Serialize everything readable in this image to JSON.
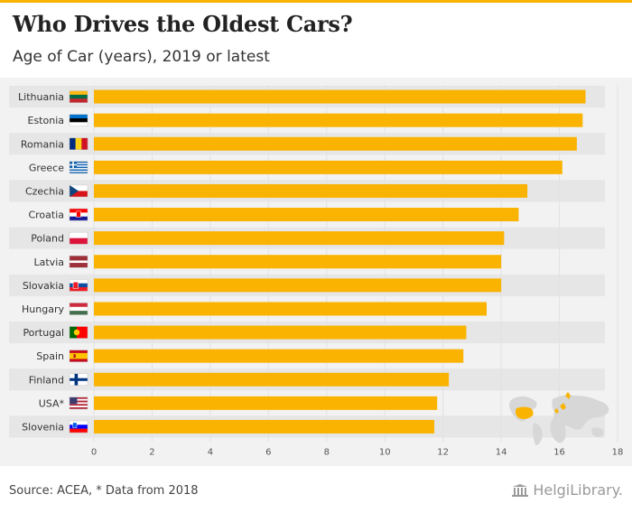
{
  "header": {
    "title": "Who Drives the Oldest Cars?",
    "subtitle": "Age of Car (years), 2019 or latest"
  },
  "footer": {
    "source": "Source: ACEA, * Data from 2018",
    "logo_text": "HelgiLibrary."
  },
  "colors": {
    "bar": "#f9b300",
    "background": "#f2f2f2",
    "row_band": "#e6e6e6"
  },
  "chart_data": {
    "type": "bar",
    "orientation": "horizontal",
    "title": "Who Drives the Oldest Cars?",
    "subtitle": "Age of Car (years), 2019 or latest",
    "xlabel": "",
    "ylabel": "",
    "xlim": [
      0,
      18
    ],
    "xticks": [
      0,
      2,
      4,
      6,
      8,
      10,
      12,
      14,
      16,
      18
    ],
    "grid": true,
    "legend": "none",
    "categories": [
      "Lithuania",
      "Estonia",
      "Romania",
      "Greece",
      "Czechia",
      "Croatia",
      "Poland",
      "Latvia",
      "Slovakia",
      "Hungary",
      "Portugal",
      "Spain",
      "Finland",
      "USA*",
      "Slovenia"
    ],
    "values": [
      16.9,
      16.8,
      16.6,
      16.1,
      14.9,
      14.6,
      14.1,
      14.0,
      14.0,
      13.5,
      12.8,
      12.7,
      12.2,
      11.8,
      11.7
    ],
    "flags": [
      "lithuania-flag-icon",
      "estonia-flag-icon",
      "romania-flag-icon",
      "greece-flag-icon",
      "czechia-flag-icon",
      "croatia-flag-icon",
      "poland-flag-icon",
      "latvia-flag-icon",
      "slovakia-flag-icon",
      "hungary-flag-icon",
      "portugal-flag-icon",
      "spain-flag-icon",
      "finland-flag-icon",
      "usa-flag-icon",
      "slovenia-flag-icon"
    ]
  }
}
